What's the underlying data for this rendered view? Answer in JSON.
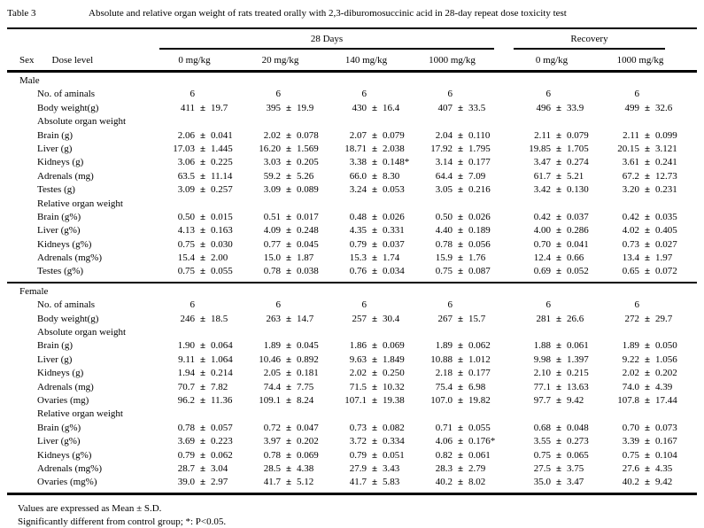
{
  "page": {
    "table_label": "Table 3",
    "title": "Absolute and relative organ weight of rats treated orally with 2,3-diburomosuccinic acid in 28-day repeat dose toxicity test"
  },
  "table": {
    "plus_minus": "±",
    "col_groups": [
      {
        "label": "28 Days"
      },
      {
        "label": "Recovery"
      }
    ],
    "header": {
      "sex": "Sex",
      "dose_level": "Dose level",
      "doses": [
        "0 mg/kg",
        "20 mg/kg",
        "140 mg/kg",
        "1000 mg/kg",
        "0 mg/kg",
        "1000 mg/kg"
      ]
    },
    "sections": [
      {
        "sex": "Male",
        "rows": [
          {
            "label": "No. of aminals",
            "type": "count",
            "values": [
              "6",
              "6",
              "6",
              "6",
              "6",
              "6"
            ]
          },
          {
            "label": "Body weight(g)",
            "type": "data",
            "values": [
              [
                "411",
                "19.7"
              ],
              [
                "395",
                "19.9"
              ],
              [
                "430",
                "16.4"
              ],
              [
                "407",
                "33.5"
              ],
              [
                "496",
                "33.9"
              ],
              [
                "499",
                "32.6"
              ]
            ]
          },
          {
            "label": "Absolute organ weight",
            "type": "subheader"
          },
          {
            "label": "Brain (g)",
            "type": "data",
            "values": [
              [
                "2.06",
                "0.041"
              ],
              [
                "2.02",
                "0.078"
              ],
              [
                "2.07",
                "0.079"
              ],
              [
                "2.04",
                "0.110"
              ],
              [
                "2.11",
                "0.079"
              ],
              [
                "2.11",
                "0.099"
              ]
            ]
          },
          {
            "label": "Liver (g)",
            "type": "data",
            "values": [
              [
                "17.03",
                "1.445"
              ],
              [
                "16.20",
                "1.569"
              ],
              [
                "18.71",
                "2.038"
              ],
              [
                "17.92",
                "1.795"
              ],
              [
                "19.85",
                "1.705"
              ],
              [
                "20.15",
                "3.121"
              ]
            ]
          },
          {
            "label": "Kidneys (g)",
            "type": "data",
            "values": [
              [
                "3.06",
                "0.225"
              ],
              [
                "3.03",
                "0.205"
              ],
              [
                "3.38",
                "0.148*"
              ],
              [
                "3.14",
                "0.177"
              ],
              [
                "3.47",
                "0.274"
              ],
              [
                "3.61",
                "0.241"
              ]
            ]
          },
          {
            "label": "Adrenals (mg)",
            "type": "data",
            "values": [
              [
                "63.5",
                "11.14"
              ],
              [
                "59.2",
                "5.26"
              ],
              [
                "66.0",
                "8.30"
              ],
              [
                "64.4",
                "7.09"
              ],
              [
                "61.7",
                "5.21"
              ],
              [
                "67.2",
                "12.73"
              ]
            ]
          },
          {
            "label": "Testes (g)",
            "type": "data",
            "values": [
              [
                "3.09",
                "0.257"
              ],
              [
                "3.09",
                "0.089"
              ],
              [
                "3.24",
                "0.053"
              ],
              [
                "3.05",
                "0.216"
              ],
              [
                "3.42",
                "0.130"
              ],
              [
                "3.20",
                "0.231"
              ]
            ]
          },
          {
            "label": "Relative organ weight",
            "type": "subheader"
          },
          {
            "label": "Brain (g%)",
            "type": "data",
            "values": [
              [
                "0.50",
                "0.015"
              ],
              [
                "0.51",
                "0.017"
              ],
              [
                "0.48",
                "0.026"
              ],
              [
                "0.50",
                "0.026"
              ],
              [
                "0.42",
                "0.037"
              ],
              [
                "0.42",
                "0.035"
              ]
            ]
          },
          {
            "label": "Liver (g%)",
            "type": "data",
            "values": [
              [
                "4.13",
                "0.163"
              ],
              [
                "4.09",
                "0.248"
              ],
              [
                "4.35",
                "0.331"
              ],
              [
                "4.40",
                "0.189"
              ],
              [
                "4.00",
                "0.286"
              ],
              [
                "4.02",
                "0.405"
              ]
            ]
          },
          {
            "label": "Kidneys (g%)",
            "type": "data",
            "values": [
              [
                "0.75",
                "0.030"
              ],
              [
                "0.77",
                "0.045"
              ],
              [
                "0.79",
                "0.037"
              ],
              [
                "0.78",
                "0.056"
              ],
              [
                "0.70",
                "0.041"
              ],
              [
                "0.73",
                "0.027"
              ]
            ]
          },
          {
            "label": "Adrenals (mg%)",
            "type": "data",
            "values": [
              [
                "15.4",
                "2.00"
              ],
              [
                "15.0",
                "1.87"
              ],
              [
                "15.3",
                "1.74"
              ],
              [
                "15.9",
                "1.76"
              ],
              [
                "12.4",
                "0.66"
              ],
              [
                "13.4",
                "1.97"
              ]
            ]
          },
          {
            "label": "Testes (g%)",
            "type": "data",
            "values": [
              [
                "0.75",
                "0.055"
              ],
              [
                "0.78",
                "0.038"
              ],
              [
                "0.76",
                "0.034"
              ],
              [
                "0.75",
                "0.087"
              ],
              [
                "0.69",
                "0.052"
              ],
              [
                "0.65",
                "0.072"
              ]
            ]
          }
        ]
      },
      {
        "sex": "Female",
        "rows": [
          {
            "label": "No. of aminals",
            "type": "count",
            "values": [
              "6",
              "6",
              "6",
              "6",
              "6",
              "6"
            ]
          },
          {
            "label": "Body weight(g)",
            "type": "data",
            "values": [
              [
                "246",
                "18.5"
              ],
              [
                "263",
                "14.7"
              ],
              [
                "257",
                "30.4"
              ],
              [
                "267",
                "15.7"
              ],
              [
                "281",
                "26.6"
              ],
              [
                "272",
                "29.7"
              ]
            ]
          },
          {
            "label": "Absolute organ weight",
            "type": "subheader"
          },
          {
            "label": "Brain (g)",
            "type": "data",
            "values": [
              [
                "1.90",
                "0.064"
              ],
              [
                "1.89",
                "0.045"
              ],
              [
                "1.86",
                "0.069"
              ],
              [
                "1.89",
                "0.062"
              ],
              [
                "1.88",
                "0.061"
              ],
              [
                "1.89",
                "0.050"
              ]
            ]
          },
          {
            "label": "Liver (g)",
            "type": "data",
            "values": [
              [
                "9.11",
                "1.064"
              ],
              [
                "10.46",
                "0.892"
              ],
              [
                "9.63",
                "1.849"
              ],
              [
                "10.88",
                "1.012"
              ],
              [
                "9.98",
                "1.397"
              ],
              [
                "9.22",
                "1.056"
              ]
            ]
          },
          {
            "label": "Kidneys (g)",
            "type": "data",
            "values": [
              [
                "1.94",
                "0.214"
              ],
              [
                "2.05",
                "0.181"
              ],
              [
                "2.02",
                "0.250"
              ],
              [
                "2.18",
                "0.177"
              ],
              [
                "2.10",
                "0.215"
              ],
              [
                "2.02",
                "0.202"
              ]
            ]
          },
          {
            "label": "Adrenals (mg)",
            "type": "data",
            "values": [
              [
                "70.7",
                "7.82"
              ],
              [
                "74.4",
                "7.75"
              ],
              [
                "71.5",
                "10.32"
              ],
              [
                "75.4",
                "6.98"
              ],
              [
                "77.1",
                "13.63"
              ],
              [
                "74.0",
                "4.39"
              ]
            ]
          },
          {
            "label": "Ovaries (mg)",
            "type": "data",
            "values": [
              [
                "96.2",
                "11.36"
              ],
              [
                "109.1",
                "8.24"
              ],
              [
                "107.1",
                "19.38"
              ],
              [
                "107.0",
                "19.82"
              ],
              [
                "97.7",
                "9.42"
              ],
              [
                "107.8",
                "17.44"
              ]
            ]
          },
          {
            "label": "Relative organ weight",
            "type": "subheader"
          },
          {
            "label": "Brain (g%)",
            "type": "data",
            "values": [
              [
                "0.78",
                "0.057"
              ],
              [
                "0.72",
                "0.047"
              ],
              [
                "0.73",
                "0.082"
              ],
              [
                "0.71",
                "0.055"
              ],
              [
                "0.68",
                "0.048"
              ],
              [
                "0.70",
                "0.073"
              ]
            ]
          },
          {
            "label": "Liver (g%)",
            "type": "data",
            "values": [
              [
                "3.69",
                "0.223"
              ],
              [
                "3.97",
                "0.202"
              ],
              [
                "3.72",
                "0.334"
              ],
              [
                "4.06",
                "0.176*"
              ],
              [
                "3.55",
                "0.273"
              ],
              [
                "3.39",
                "0.167"
              ]
            ]
          },
          {
            "label": "Kidneys (g%)",
            "type": "data",
            "values": [
              [
                "0.79",
                "0.062"
              ],
              [
                "0.78",
                "0.069"
              ],
              [
                "0.79",
                "0.051"
              ],
              [
                "0.82",
                "0.061"
              ],
              [
                "0.75",
                "0.065"
              ],
              [
                "0.75",
                "0.104"
              ]
            ]
          },
          {
            "label": "Adrenals (mg%)",
            "type": "data",
            "values": [
              [
                "28.7",
                "3.04"
              ],
              [
                "28.5",
                "4.38"
              ],
              [
                "27.9",
                "3.43"
              ],
              [
                "28.3",
                "2.79"
              ],
              [
                "27.5",
                "3.75"
              ],
              [
                "27.6",
                "4.35"
              ]
            ]
          },
          {
            "label": "Ovaries (mg%)",
            "type": "data",
            "values": [
              [
                "39.0",
                "2.97"
              ],
              [
                "41.7",
                "5.12"
              ],
              [
                "41.7",
                "5.83"
              ],
              [
                "40.2",
                "8.02"
              ],
              [
                "35.0",
                "3.47"
              ],
              [
                "40.2",
                "9.42"
              ]
            ]
          }
        ]
      }
    ],
    "footnotes": [
      "Values are expressed as Mean ± S.D.",
      "Significantly different from control group; *: P<0.05."
    ]
  }
}
